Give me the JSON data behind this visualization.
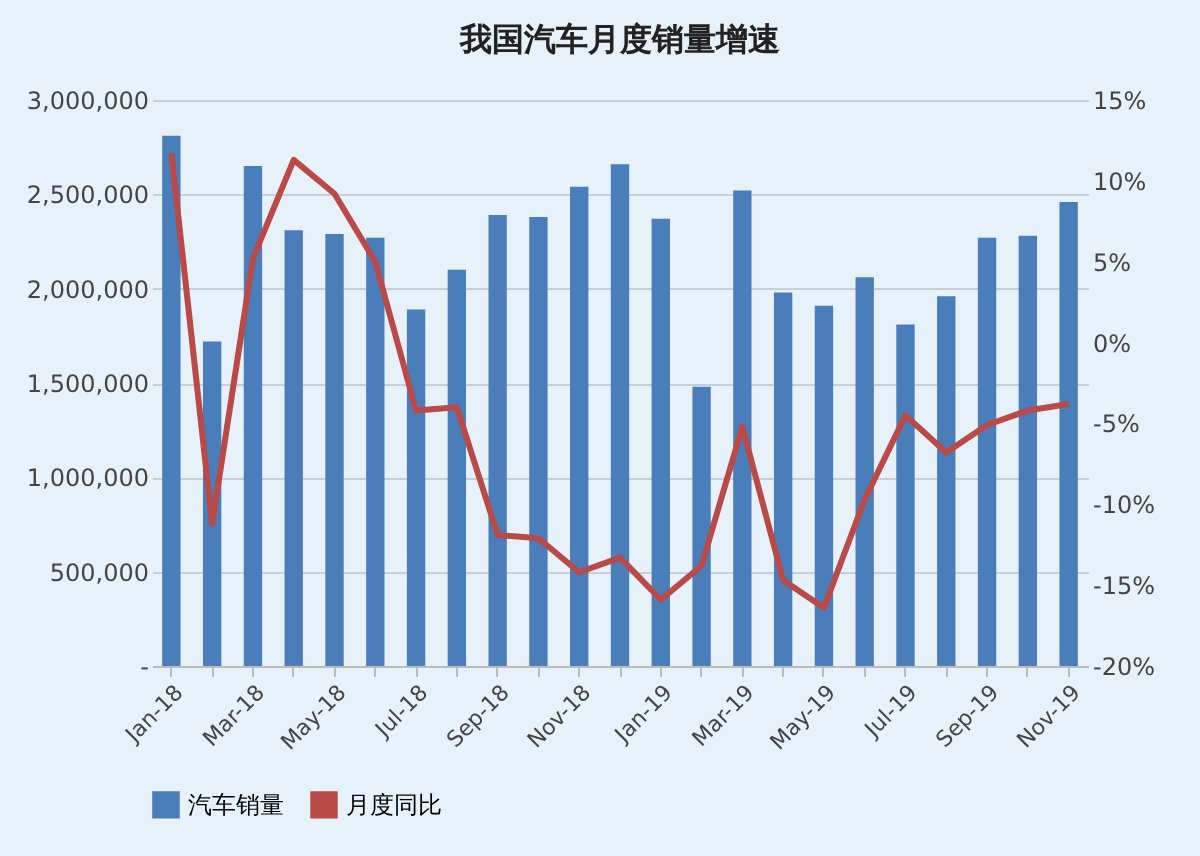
{
  "chart_data": {
    "type": "bar",
    "title": "我国汽车月度销量增速",
    "categories": [
      "Jan-18",
      null,
      "Mar-18",
      null,
      "May-18",
      null,
      "Jul-18",
      null,
      "Sep-18",
      null,
      "Nov-18",
      null,
      "Jan-19",
      null,
      "Mar-19",
      null,
      "May-19",
      null,
      "Jul-19",
      null,
      "Sep-19",
      null,
      "Nov-19"
    ],
    "series": [
      {
        "name": "汽车销量",
        "color": "#4a7ebb",
        "values": [
          2810000,
          1720000,
          2650000,
          2310000,
          2290000,
          2270000,
          1890000,
          2100000,
          2390000,
          2380000,
          2540000,
          2660000,
          2370000,
          1480000,
          2520000,
          1980000,
          1910000,
          2060000,
          1810000,
          1960000,
          2270000,
          2280000,
          2460000
        ]
      },
      {
        "name": "月度同比",
        "type": "line",
        "axis": "y2",
        "color": "#b94a48",
        "values": [
          11.7,
          -11.2,
          5.2,
          11.3,
          9.2,
          5.0,
          -4.2,
          -4.0,
          -11.9,
          -12.1,
          -14.2,
          -13.3,
          -15.9,
          -13.8,
          -5.2,
          -14.7,
          -16.4,
          -9.7,
          -4.5,
          -6.8,
          -5.1,
          -4.2,
          -3.8
        ]
      }
    ],
    "ylim": [
      0,
      3000000
    ],
    "yticks": [
      {
        "value": 0,
        "label": "-"
      },
      {
        "value": 500000,
        "label": "500,000"
      },
      {
        "value": 1000000,
        "label": "1,000,000"
      },
      {
        "value": 1500000,
        "label": "1,500,000"
      },
      {
        "value": 2000000,
        "label": "2,000,000"
      },
      {
        "value": 2500000,
        "label": "2,500,000"
      },
      {
        "value": 3000000,
        "label": "3,000,000"
      }
    ],
    "y2lim": [
      -20,
      15
    ],
    "y2ticks": [
      {
        "value": -20,
        "label": "-20%"
      },
      {
        "value": -15,
        "label": "-15%"
      },
      {
        "value": -10,
        "label": "-10%"
      },
      {
        "value": -5,
        "label": "-5%"
      },
      {
        "value": 0,
        "label": "0%"
      },
      {
        "value": 5,
        "label": "5%"
      },
      {
        "value": 10,
        "label": "10%"
      },
      {
        "value": 15,
        "label": "15%"
      }
    ],
    "grid": "y",
    "legend": "bottom",
    "marker": "none",
    "line_style": "solid"
  }
}
